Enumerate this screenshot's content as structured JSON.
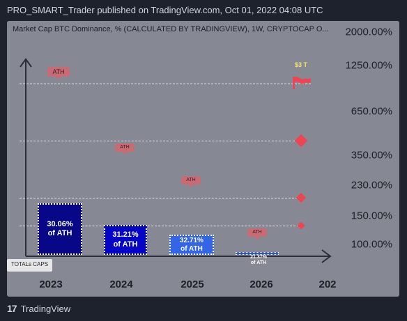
{
  "header": {
    "publisher_line": "PRO_SMART_Trader published on TradingView.com, Oct 01, 2022 04:08 UTC"
  },
  "legend": {
    "text": "Market Cap BTC Dominance, % (CALCULATED BY TRADINGVIEW), 1W, CRYPTOCAP  O..."
  },
  "footer": {
    "brand": "TradingView",
    "logo": "17"
  },
  "totals_tag": "TOTALs CAPS",
  "target_label": "$3 T",
  "ath_label": "ATH",
  "colors": {
    "background": "#1e222d",
    "pane": "#868993",
    "bar_2023": "#070787",
    "bar_2024": "#0505c8",
    "bar_2025": "#3366e6",
    "bar_2026": "#2f54d6",
    "target": "#f04452"
  },
  "chart_data": {
    "type": "bar",
    "categories": [
      "2023",
      "2024",
      "2025",
      "2026",
      "202"
    ],
    "bars": [
      {
        "year": "2023",
        "line1": "30.06%",
        "line2": "of ATH"
      },
      {
        "year": "2024",
        "line1": "31.21%",
        "line2": "of ATH"
      },
      {
        "year": "2025",
        "line1": "32.71%",
        "line2": "of ATH"
      },
      {
        "year": "2026",
        "line1": "21.37%",
        "line2": "of  ATH"
      }
    ],
    "y_axis_labels": [
      "2000.00%",
      "1250.00%",
      "650.00%",
      "350.00%",
      "230.00%",
      "150.00%",
      "100.00%"
    ],
    "scale": "log",
    "grid": false
  }
}
